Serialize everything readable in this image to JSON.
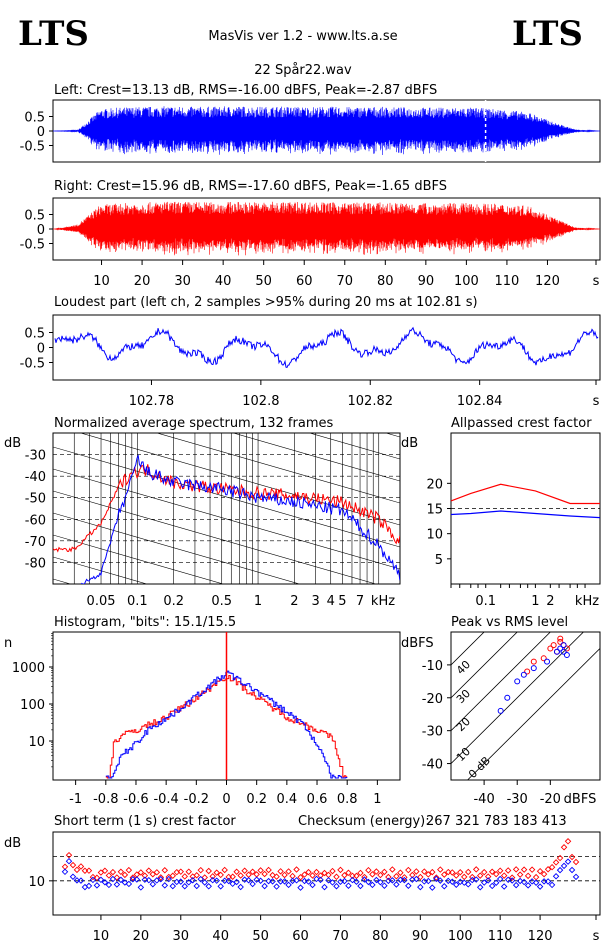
{
  "header": {
    "logo_left": "LTS",
    "logo_right": "LTS",
    "app_title": "MasVis ver 1.2 - www.lts.a.se",
    "file_name": "22 Spår22.wav"
  },
  "colors": {
    "left": "#0000ff",
    "right": "#ff0000",
    "grid": "#000000"
  },
  "chart_data": [
    {
      "id": "left",
      "type": "line",
      "title": "Left: Crest=13.13 dB, RMS=-16.00 dBFS, Peak=-2.87 dBFS",
      "yticks": [
        "0.5",
        "0",
        "-0.5"
      ],
      "ylim": [
        -1,
        1
      ],
      "xlim": [
        0,
        130
      ],
      "series": [
        {
          "values": [
            0,
            0.02,
            0.72,
            0.78,
            0.8,
            0.82,
            0.8,
            0.8,
            0.82,
            0.8,
            0.81,
            0.8,
            0.8,
            0.79,
            0.8,
            0.78,
            0.78,
            0.77,
            0.78,
            0.75,
            0.7,
            0.6,
            0.3,
            0.05,
            0
          ]
        }
      ],
      "marker_x": 102.81
    },
    {
      "id": "right",
      "type": "line",
      "title": "Right: Crest=15.96 dB, RMS=-17.60 dBFS, Peak=-1.65 dBFS",
      "yticks": [
        "0.5",
        "0",
        "-0.5"
      ],
      "ylim": [
        -1,
        1
      ],
      "xlim": [
        0,
        130
      ],
      "xticks": [
        "10",
        "20",
        "30",
        "40",
        "50",
        "60",
        "70",
        "80",
        "90",
        "100",
        "110",
        "120",
        "s"
      ],
      "series": [
        {
          "values": [
            0,
            0.15,
            0.8,
            0.85,
            0.88,
            0.9,
            0.9,
            0.88,
            0.9,
            0.89,
            0.9,
            0.9,
            0.88,
            0.87,
            0.88,
            0.86,
            0.86,
            0.85,
            0.86,
            0.84,
            0.82,
            0.75,
            0.4,
            0.05,
            0
          ]
        }
      ]
    },
    {
      "id": "loudest",
      "type": "line",
      "title": "Loudest part (left  ch, 2 samples >95% during 20 ms at 102.81 s)",
      "yticks": [
        "0.5",
        "0",
        "-0.5"
      ],
      "xticks": [
        "102.78",
        "102.8",
        "102.82",
        "102.84",
        "s"
      ],
      "xlim": [
        102.762,
        102.862
      ],
      "ylim": [
        -1,
        1
      ]
    },
    {
      "id": "spectrum",
      "type": "line",
      "title": "Normalized average spectrum, 132 frames",
      "ylabel": "dB",
      "yticks": [
        "-30",
        "-40",
        "-50",
        "-60",
        "-70",
        "-80"
      ],
      "xticks": [
        "0.05",
        "0.1",
        "0.2",
        "0.5",
        "1",
        "2",
        "3",
        "4",
        "5",
        "7",
        "kHz"
      ],
      "series": [
        {
          "freq_khz": [
            0.03,
            0.05,
            0.07,
            0.09,
            0.12,
            0.2,
            0.5,
            1,
            2,
            5,
            10,
            20
          ],
          "db": [
            -74,
            -62,
            -45,
            -38,
            -37,
            -43,
            -46,
            -48,
            -49,
            -52,
            -60,
            -78
          ]
        },
        {
          "freq_khz": [
            0.03,
            0.05,
            0.07,
            0.09,
            0.1,
            0.12,
            0.2,
            0.5,
            1,
            2,
            5,
            10,
            15
          ],
          "db": [
            -92,
            -85,
            -58,
            -42,
            -32,
            -38,
            -43,
            -46,
            -50,
            -52,
            -56,
            -72,
            -86
          ]
        }
      ]
    },
    {
      "id": "allpass",
      "type": "line",
      "title": "Allpassed crest factor",
      "ylabel": "dB",
      "yticks": [
        "20",
        "15",
        "10",
        "5"
      ],
      "xticks": [
        "0.1",
        "1",
        "2",
        "kHz"
      ],
      "series": [
        {
          "freq_khz": [
            0.02,
            0.05,
            0.2,
            1,
            5,
            20
          ],
          "db": [
            16.5,
            18,
            19.8,
            18.5,
            16,
            16
          ]
        },
        {
          "freq_khz": [
            0.02,
            0.05,
            0.2,
            1,
            5,
            20
          ],
          "db": [
            13.8,
            14,
            14.5,
            14,
            13.5,
            13.2
          ]
        }
      ]
    },
    {
      "id": "histogram",
      "type": "line",
      "title": "Histogram, \"bits\": 15.1/15.5",
      "ylabel": "n",
      "yticks": [
        "1000",
        "100",
        "10"
      ],
      "xticks": [
        "-1",
        "-0.8",
        "-0.6",
        "-0.4",
        "-0.2",
        "0",
        "0.2",
        "0.4",
        "0.6",
        "0.8",
        "1"
      ],
      "series": [
        {
          "x": [
            -0.78,
            -0.75,
            -0.7,
            -0.6,
            -0.4,
            -0.2,
            0,
            0.2,
            0.4,
            0.6,
            0.7,
            0.78
          ],
          "n": [
            1,
            9,
            14,
            20,
            45,
            150,
            600,
            150,
            45,
            20,
            12,
            1
          ]
        },
        {
          "x": [
            -0.76,
            -0.7,
            -0.6,
            -0.5,
            -0.4,
            -0.2,
            0,
            0.2,
            0.4,
            0.5,
            0.6,
            0.7
          ],
          "n": [
            1,
            4,
            9,
            25,
            40,
            170,
            700,
            220,
            60,
            30,
            8,
            1
          ]
        }
      ]
    },
    {
      "id": "peak_rms",
      "type": "scatter",
      "title": "Peak vs RMS level",
      "ylabel": "dBFS",
      "xlabel": "dBFS",
      "yticks": [
        "-10",
        "-20",
        "-30",
        "-40"
      ],
      "xticks": [
        "-40",
        "-30",
        "-20"
      ],
      "diag_labels": [
        "40",
        "30",
        "20",
        "10",
        "0 dB"
      ],
      "series": [
        {
          "points": [
            [
              -22,
              -8
            ],
            [
              -20,
              -5
            ],
            [
              -19,
              -4
            ],
            [
              -17,
              -3
            ],
            [
              -16,
              -4
            ],
            [
              -15,
              -5
            ],
            [
              -18,
              -6
            ],
            [
              -25,
              -9
            ],
            [
              -27,
              -12
            ],
            [
              -17,
              -2
            ]
          ]
        },
        {
          "points": [
            [
              -21,
              -9
            ],
            [
              -18,
              -6
            ],
            [
              -17,
              -5
            ],
            [
              -16,
              -6
            ],
            [
              -15,
              -7
            ],
            [
              -30,
              -15
            ],
            [
              -28,
              -13
            ],
            [
              -25,
              -11
            ],
            [
              -33,
              -20
            ],
            [
              -35,
              -24
            ],
            [
              -16,
              -4
            ]
          ]
        }
      ]
    },
    {
      "id": "short_crest",
      "type": "scatter",
      "title": "Short term (1 s) crest factor",
      "checksum_label": "Checksum (energy):",
      "checksum_value": "267 321 783 183 413",
      "ylabel": "dB",
      "yticks": [
        "10"
      ],
      "xticks": [
        "10",
        "20",
        "30",
        "40",
        "50",
        "60",
        "70",
        "80",
        "90",
        "100",
        "110",
        "120",
        "s"
      ],
      "xlim": [
        0,
        132
      ],
      "series": [
        {
          "values": [
            13,
            15,
            13,
            12,
            13,
            12,
            12,
            11,
            11,
            12,
            12,
            11,
            12,
            11,
            12,
            11,
            12,
            11,
            11,
            12,
            11,
            12,
            11,
            12,
            11,
            12,
            11,
            11,
            12,
            12,
            11,
            12,
            11,
            11,
            12,
            11,
            12,
            11,
            12,
            11,
            12,
            11,
            11,
            12,
            11,
            12,
            11,
            12,
            11,
            12,
            11,
            12,
            11,
            11,
            12,
            11,
            12,
            11,
            12,
            11,
            11,
            12,
            11,
            12,
            11,
            12,
            11,
            12,
            11,
            12,
            11,
            12,
            11,
            11,
            12,
            11,
            12,
            11,
            12,
            11,
            12,
            11,
            12,
            11,
            12,
            11,
            12,
            11,
            12,
            11,
            12,
            11,
            12,
            11,
            12,
            11,
            12,
            12,
            11,
            12,
            11,
            12,
            11,
            12,
            11,
            12,
            11,
            12,
            11,
            12,
            11,
            12,
            11,
            12,
            11,
            12,
            11,
            12,
            11,
            12,
            11,
            12,
            13,
            14,
            15,
            17,
            18,
            15,
            14
          ]
        },
        {
          "values": [
            12,
            14,
            11,
            10,
            10,
            9,
            9,
            10,
            9,
            10,
            10,
            9,
            10,
            9,
            10,
            10,
            9,
            10,
            10,
            9,
            10,
            10,
            9,
            10,
            10,
            9,
            10,
            9,
            10,
            10,
            9,
            10,
            10,
            9,
            10,
            10,
            9,
            10,
            10,
            9,
            10,
            10,
            9,
            10,
            9,
            10,
            10,
            9,
            10,
            10,
            9,
            10,
            10,
            9,
            10,
            10,
            9,
            10,
            10,
            9,
            10,
            10,
            9,
            10,
            10,
            9,
            10,
            10,
            9,
            10,
            10,
            9,
            10,
            10,
            9,
            10,
            10,
            9,
            10,
            10,
            9,
            10,
            10,
            9,
            10,
            10,
            9,
            10,
            10,
            9,
            10,
            10,
            9,
            10,
            10,
            9,
            10,
            10,
            9,
            10,
            10,
            9,
            10,
            10,
            9,
            10,
            10,
            9,
            10,
            10,
            9,
            10,
            10,
            9,
            10,
            10,
            9,
            10,
            10,
            9,
            10,
            10,
            9,
            11,
            12,
            13,
            14,
            12,
            11
          ]
        }
      ]
    }
  ]
}
